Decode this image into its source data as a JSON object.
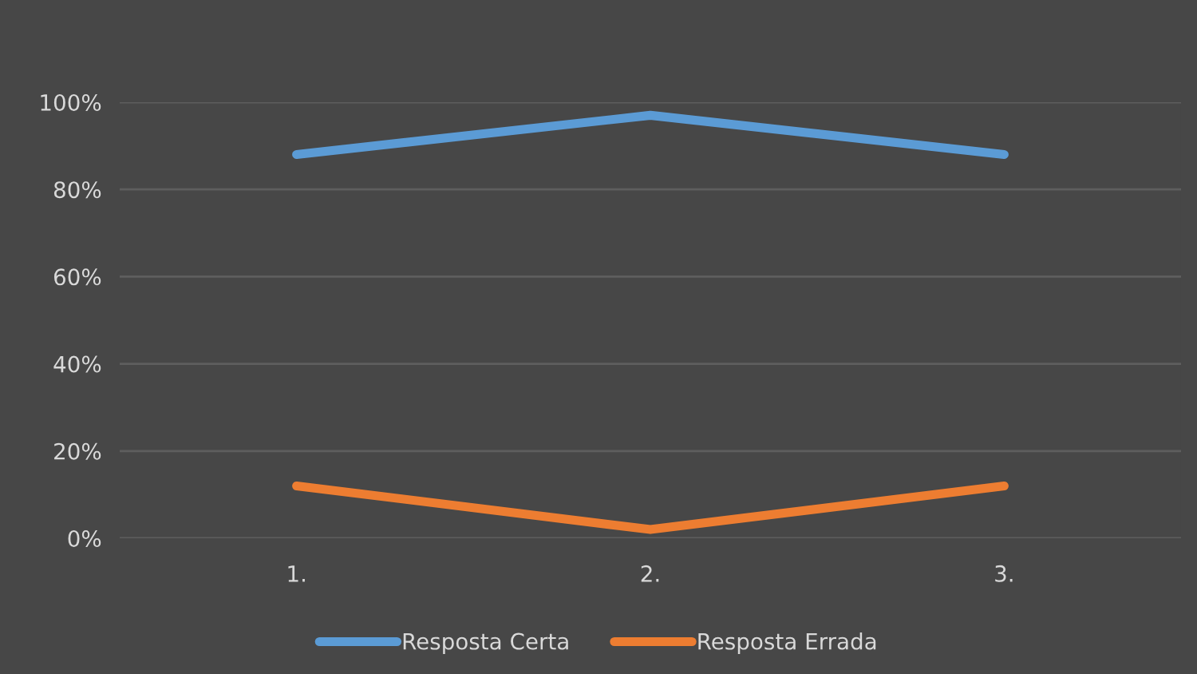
{
  "chart_data": {
    "type": "line",
    "categories": [
      "1.",
      "2.",
      "3."
    ],
    "series": [
      {
        "name": "Resposta Certa",
        "color": "#5b9bd5",
        "values": [
          88,
          97,
          88
        ]
      },
      {
        "name": "Resposta Errada",
        "color": "#ed7d31",
        "values": [
          12,
          2,
          12
        ]
      }
    ],
    "ylim": [
      0,
      100
    ],
    "yticks": [
      {
        "value": 0,
        "label": "0%"
      },
      {
        "value": 20,
        "label": "20%"
      },
      {
        "value": 40,
        "label": "40%"
      },
      {
        "value": 60,
        "label": "60%"
      },
      {
        "value": 80,
        "label": "80%"
      },
      {
        "value": 100,
        "label": "100%"
      }
    ],
    "grid": "y",
    "legend": "bottom",
    "marker": "none",
    "line_style": "solid"
  }
}
